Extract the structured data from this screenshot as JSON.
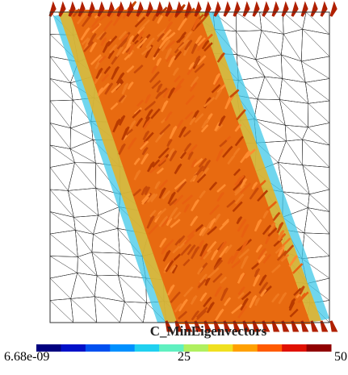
{
  "title": "C_MinEigenvectors",
  "colorbar": {
    "labels": [
      "6.68e-09",
      "25",
      "50"
    ],
    "colors": [
      "#00007f",
      "#0010c8",
      "#0050f0",
      "#0090ff",
      "#20d0f0",
      "#60f0c0",
      "#b0f060",
      "#f0e020",
      "#ffa000",
      "#ff5a00",
      "#e01000",
      "#900000"
    ]
  }
}
